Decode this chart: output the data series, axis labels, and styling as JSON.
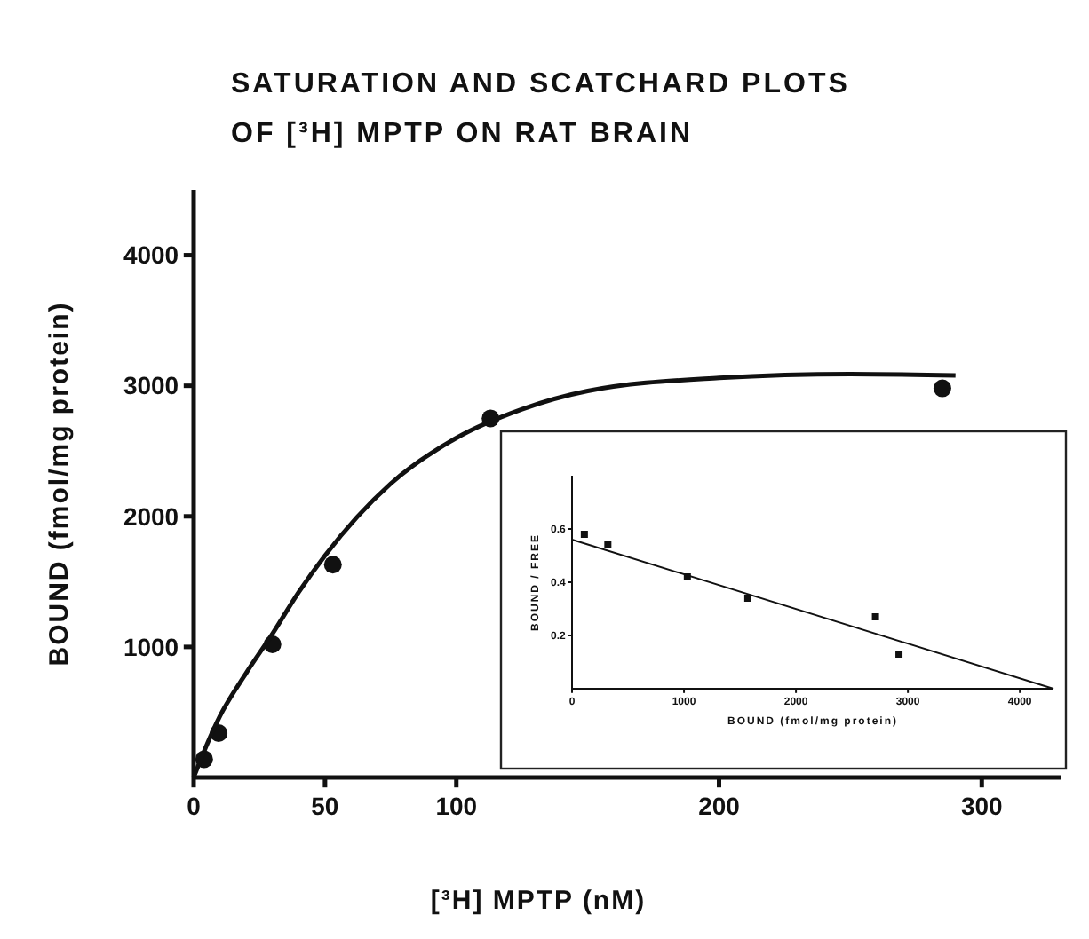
{
  "chart_data": [
    {
      "type": "scatter",
      "title": "SATURATION AND SCATCHARD PLOTS OF [³H] MPTP ON RAT BRAIN",
      "xlabel": "[³H] MPTP (nM)",
      "ylabel": "BOUND (fmol/mg protein)",
      "xlim": [
        0,
        330
      ],
      "ylim": [
        0,
        4500
      ],
      "xticks": [
        0,
        50,
        100,
        200,
        300
      ],
      "yticks": [
        1000,
        2000,
        3000,
        4000
      ],
      "grid": false,
      "series": [
        {
          "color": "#111111",
          "marker": "circle",
          "x": [
            4,
            9.5,
            30,
            53,
            113,
            285
          ],
          "values": [
            140,
            340,
            1020,
            1630,
            2750,
            2980
          ]
        },
        {
          "type": "line",
          "color": "#111111",
          "marker": "none",
          "line_style": "solid",
          "x": [
            0,
            5,
            10,
            20,
            30,
            40,
            50,
            75,
            100,
            125,
            150,
            200,
            250,
            290
          ],
          "values": [
            0,
            250,
            470,
            800,
            1100,
            1420,
            1700,
            2250,
            2600,
            2820,
            2960,
            3060,
            3090,
            3080
          ]
        }
      ]
    },
    {
      "type": "scatter",
      "xlabel": "BOUND (fmol/mg protein)",
      "ylabel": "BOUND / FREE",
      "xlim": [
        0,
        4300
      ],
      "ylim": [
        0,
        0.8
      ],
      "xticks": [
        0,
        1000,
        2000,
        3000,
        4000
      ],
      "yticks": [
        0.2,
        0.4,
        0.6
      ],
      "grid": false,
      "series": [
        {
          "color": "#111111",
          "marker": "square",
          "x": [
            110,
            320,
            1030,
            1570,
            2710,
            2920
          ],
          "values": [
            0.58,
            0.54,
            0.42,
            0.34,
            0.27,
            0.13
          ]
        },
        {
          "type": "line",
          "color": "#111111",
          "marker": "none",
          "line_style": "solid",
          "x": [
            0,
            4300
          ],
          "values": [
            0.56,
            0
          ]
        }
      ]
    }
  ]
}
